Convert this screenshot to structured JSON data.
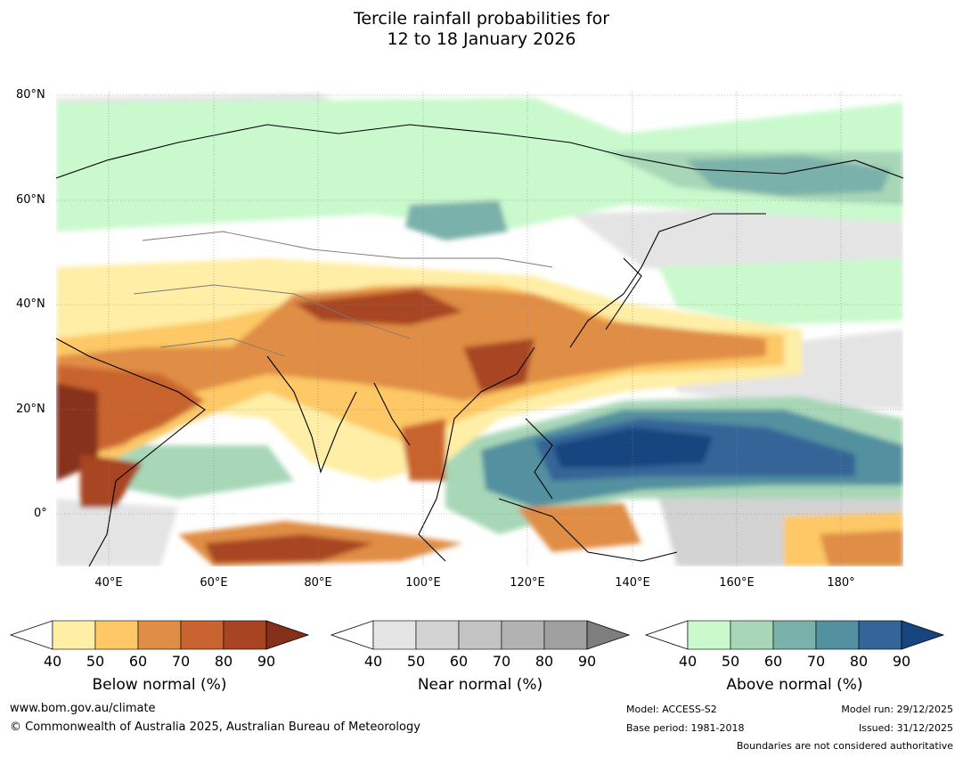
{
  "title": {
    "line1": "Tercile rainfall probabilities for",
    "line2": "12 to 18 January 2026"
  },
  "map": {
    "lat_labels": [
      "80°N",
      "60°N",
      "40°N",
      "20°N",
      "0°"
    ],
    "lon_labels": [
      "40°E",
      "60°E",
      "80°E",
      "100°E",
      "120°E",
      "140°E",
      "160°E",
      "180°"
    ]
  },
  "colorbars": {
    "ticks": [
      "40",
      "50",
      "60",
      "70",
      "80",
      "90"
    ],
    "below": {
      "label": "Below normal (%)",
      "colors": [
        "#ffeea5",
        "#fdc865",
        "#e08d45",
        "#c9632f",
        "#a84422",
        "#86301b"
      ]
    },
    "near": {
      "label": "Near normal (%)",
      "colors": [
        "#e4e4e4",
        "#d3d3d3",
        "#c3c3c3",
        "#b2b2b2",
        "#a0a0a0",
        "#7e7e7e"
      ]
    },
    "above": {
      "label": "Above normal (%)",
      "colors": [
        "#c9f9cc",
        "#a7d7b7",
        "#7ab1aa",
        "#5390a0",
        "#346598",
        "#17457f"
      ]
    }
  },
  "footer": {
    "website": "www.bom.gov.au/climate",
    "copyright": "© Commonwealth of Australia 2025, Australian Bureau of Meteorology",
    "model": "Model: ACCESS-S2",
    "base_period": "Base period: 1981-2018",
    "model_run": "Model run: 29/12/2025",
    "issued": "Issued: 31/12/2025",
    "disclaimer": "Boundaries are not considered authoritative"
  }
}
